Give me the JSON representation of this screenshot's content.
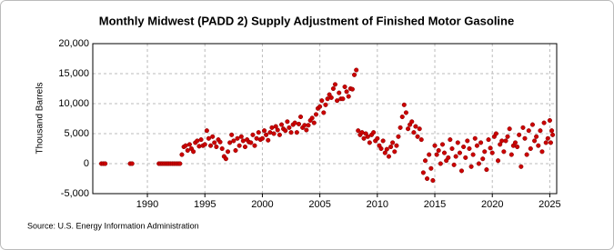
{
  "chart_data": {
    "type": "scatter",
    "title": "Monthly Midwest (PADD 2) Supply Adjustment of Finished Motor Gasoline",
    "y_label": "Thousand Barrels",
    "source": "Source: U.S. Energy Information Administration",
    "series": [
      {
        "name": "Midwest (PADD 2) Supply Adjustment of Finished Motor Gasoline",
        "color": "#cc0000",
        "x": [
          1986.0,
          1986.17,
          1986.33,
          1988.5,
          1988.67,
          1991.0,
          1991.17,
          1991.33,
          1991.5,
          1991.67,
          1991.83,
          1992.0,
          1992.17,
          1992.33,
          1992.5,
          1992.67,
          1992.83,
          1993.0,
          1993.17,
          1993.33,
          1993.5,
          1993.67,
          1993.83,
          1994.0,
          1994.17,
          1994.33,
          1994.5,
          1994.67,
          1994.83,
          1995.0,
          1995.17,
          1995.33,
          1995.5,
          1995.67,
          1995.83,
          1996.0,
          1996.17,
          1996.33,
          1996.5,
          1996.67,
          1996.83,
          1997.0,
          1997.17,
          1997.33,
          1997.5,
          1997.67,
          1997.83,
          1998.0,
          1998.17,
          1998.33,
          1998.5,
          1998.67,
          1998.83,
          1999.0,
          1999.17,
          1999.33,
          1999.5,
          1999.67,
          1999.83,
          2000.0,
          2000.17,
          2000.33,
          2000.5,
          2000.67,
          2000.83,
          2001.0,
          2001.17,
          2001.33,
          2001.5,
          2001.67,
          2001.83,
          2002.0,
          2002.17,
          2002.33,
          2002.5,
          2002.67,
          2002.83,
          2003.0,
          2003.17,
          2003.33,
          2003.5,
          2003.67,
          2003.83,
          2004.0,
          2004.17,
          2004.33,
          2004.5,
          2004.67,
          2004.83,
          2005.0,
          2005.17,
          2005.33,
          2005.5,
          2005.67,
          2005.83,
          2006.0,
          2006.17,
          2006.33,
          2006.5,
          2006.67,
          2006.83,
          2007.0,
          2007.17,
          2007.33,
          2007.5,
          2007.67,
          2007.83,
          2008.0,
          2008.17,
          2008.33,
          2008.5,
          2008.67,
          2008.83,
          2009.0,
          2009.17,
          2009.33,
          2009.5,
          2009.67,
          2009.83,
          2010.0,
          2010.17,
          2010.33,
          2010.5,
          2010.67,
          2010.83,
          2011.0,
          2011.17,
          2011.33,
          2011.5,
          2011.67,
          2011.83,
          2012.0,
          2012.17,
          2012.33,
          2012.5,
          2012.67,
          2012.83,
          2013.0,
          2013.17,
          2013.33,
          2013.5,
          2013.67,
          2013.83,
          2014.0,
          2014.17,
          2014.33,
          2014.5,
          2014.67,
          2014.83,
          2015.0,
          2015.17,
          2015.33,
          2015.5,
          2015.67,
          2015.83,
          2016.0,
          2016.17,
          2016.33,
          2016.5,
          2016.67,
          2016.83,
          2017.0,
          2017.17,
          2017.33,
          2017.5,
          2017.67,
          2017.83,
          2018.0,
          2018.17,
          2018.33,
          2018.5,
          2018.67,
          2018.83,
          2019.0,
          2019.17,
          2019.33,
          2019.5,
          2019.67,
          2019.83,
          2020.0,
          2020.17,
          2020.33,
          2020.5,
          2020.67,
          2020.83,
          2021.0,
          2021.17,
          2021.33,
          2021.5,
          2021.67,
          2021.83,
          2022.0,
          2022.17,
          2022.33,
          2022.5,
          2022.67,
          2022.83,
          2023.0,
          2023.17,
          2023.33,
          2023.5,
          2023.67,
          2023.83,
          2024.0,
          2024.17,
          2024.33,
          2024.5,
          2024.67,
          2024.83,
          2025.0,
          2025.08,
          2025.17,
          2025.25
        ],
        "values": [
          0,
          0,
          0,
          0,
          0,
          0,
          0,
          0,
          0,
          0,
          0,
          0,
          0,
          0,
          0,
          0,
          0,
          1500,
          2800,
          3000,
          2200,
          3200,
          2500,
          2000,
          3500,
          3800,
          2900,
          4000,
          3000,
          3200,
          5500,
          4200,
          3000,
          4500,
          3500,
          2800,
          4000,
          3600,
          2500,
          1200,
          800,
          2000,
          3500,
          4800,
          3800,
          2200,
          4200,
          3000,
          4500,
          3800,
          2800,
          4000,
          3600,
          3500,
          4800,
          3000,
          4200,
          5200,
          4000,
          4200,
          5500,
          4800,
          3900,
          5200,
          6000,
          5000,
          6200,
          5600,
          4800,
          6500,
          5800,
          5500,
          7000,
          6000,
          5200,
          6500,
          6800,
          5200,
          6600,
          7800,
          6000,
          6400,
          5600,
          6400,
          7200,
          7600,
          6800,
          8200,
          9200,
          9500,
          10500,
          8500,
          9800,
          10800,
          11500,
          11000,
          12500,
          13200,
          10500,
          11800,
          10800,
          10800,
          12800,
          12000,
          11200,
          12500,
          12400,
          14800,
          15600,
          5500,
          4800,
          5200,
          4200,
          5000,
          4500,
          3500,
          4800,
          5200,
          3800,
          4200,
          3000,
          2500,
          3800,
          1800,
          2400,
          1200,
          2800,
          3500,
          2000,
          3000,
          4500,
          6000,
          7800,
          9800,
          8500,
          5800,
          6500,
          7000,
          5200,
          6200,
          4500,
          5800,
          4000,
          -1500,
          500,
          -2500,
          1500,
          -800,
          -2800,
          3000,
          1500,
          2200,
          0,
          3200,
          1800,
          500,
          1000,
          4000,
          2500,
          -200,
          1200,
          3500,
          1800,
          -1200,
          2800,
          1000,
          3800,
          2500,
          -500,
          1500,
          4200,
          3000,
          0,
          3500,
          800,
          2000,
          -1000,
          4000,
          2600,
          1800,
          4500,
          5000,
          500,
          3200,
          3800,
          2000,
          3800,
          4500,
          5800,
          1500,
          3000,
          3500,
          2800,
          4800,
          -500,
          6000,
          4200,
          1500,
          5500,
          2500,
          6500,
          3800,
          4500,
          3000,
          5500,
          2000,
          6800,
          3500,
          4200,
          7200,
          3500,
          5500,
          4800
        ]
      }
    ],
    "xlim": [
      1985.25,
      2025.6
    ],
    "xticks": [
      1990,
      1995,
      2000,
      2005,
      2010,
      2015,
      2020,
      2025
    ],
    "ylim": [
      -5000,
      20000
    ],
    "yticks": [
      {
        "value": -5000,
        "label": "-5,000"
      },
      0,
      {
        "value": 5000,
        "label": "5,000"
      },
      {
        "value": 10000,
        "label": "10,000"
      },
      {
        "value": 15000,
        "label": "15,000"
      },
      {
        "value": 20000,
        "label": "20,000"
      }
    ],
    "grid": true
  }
}
